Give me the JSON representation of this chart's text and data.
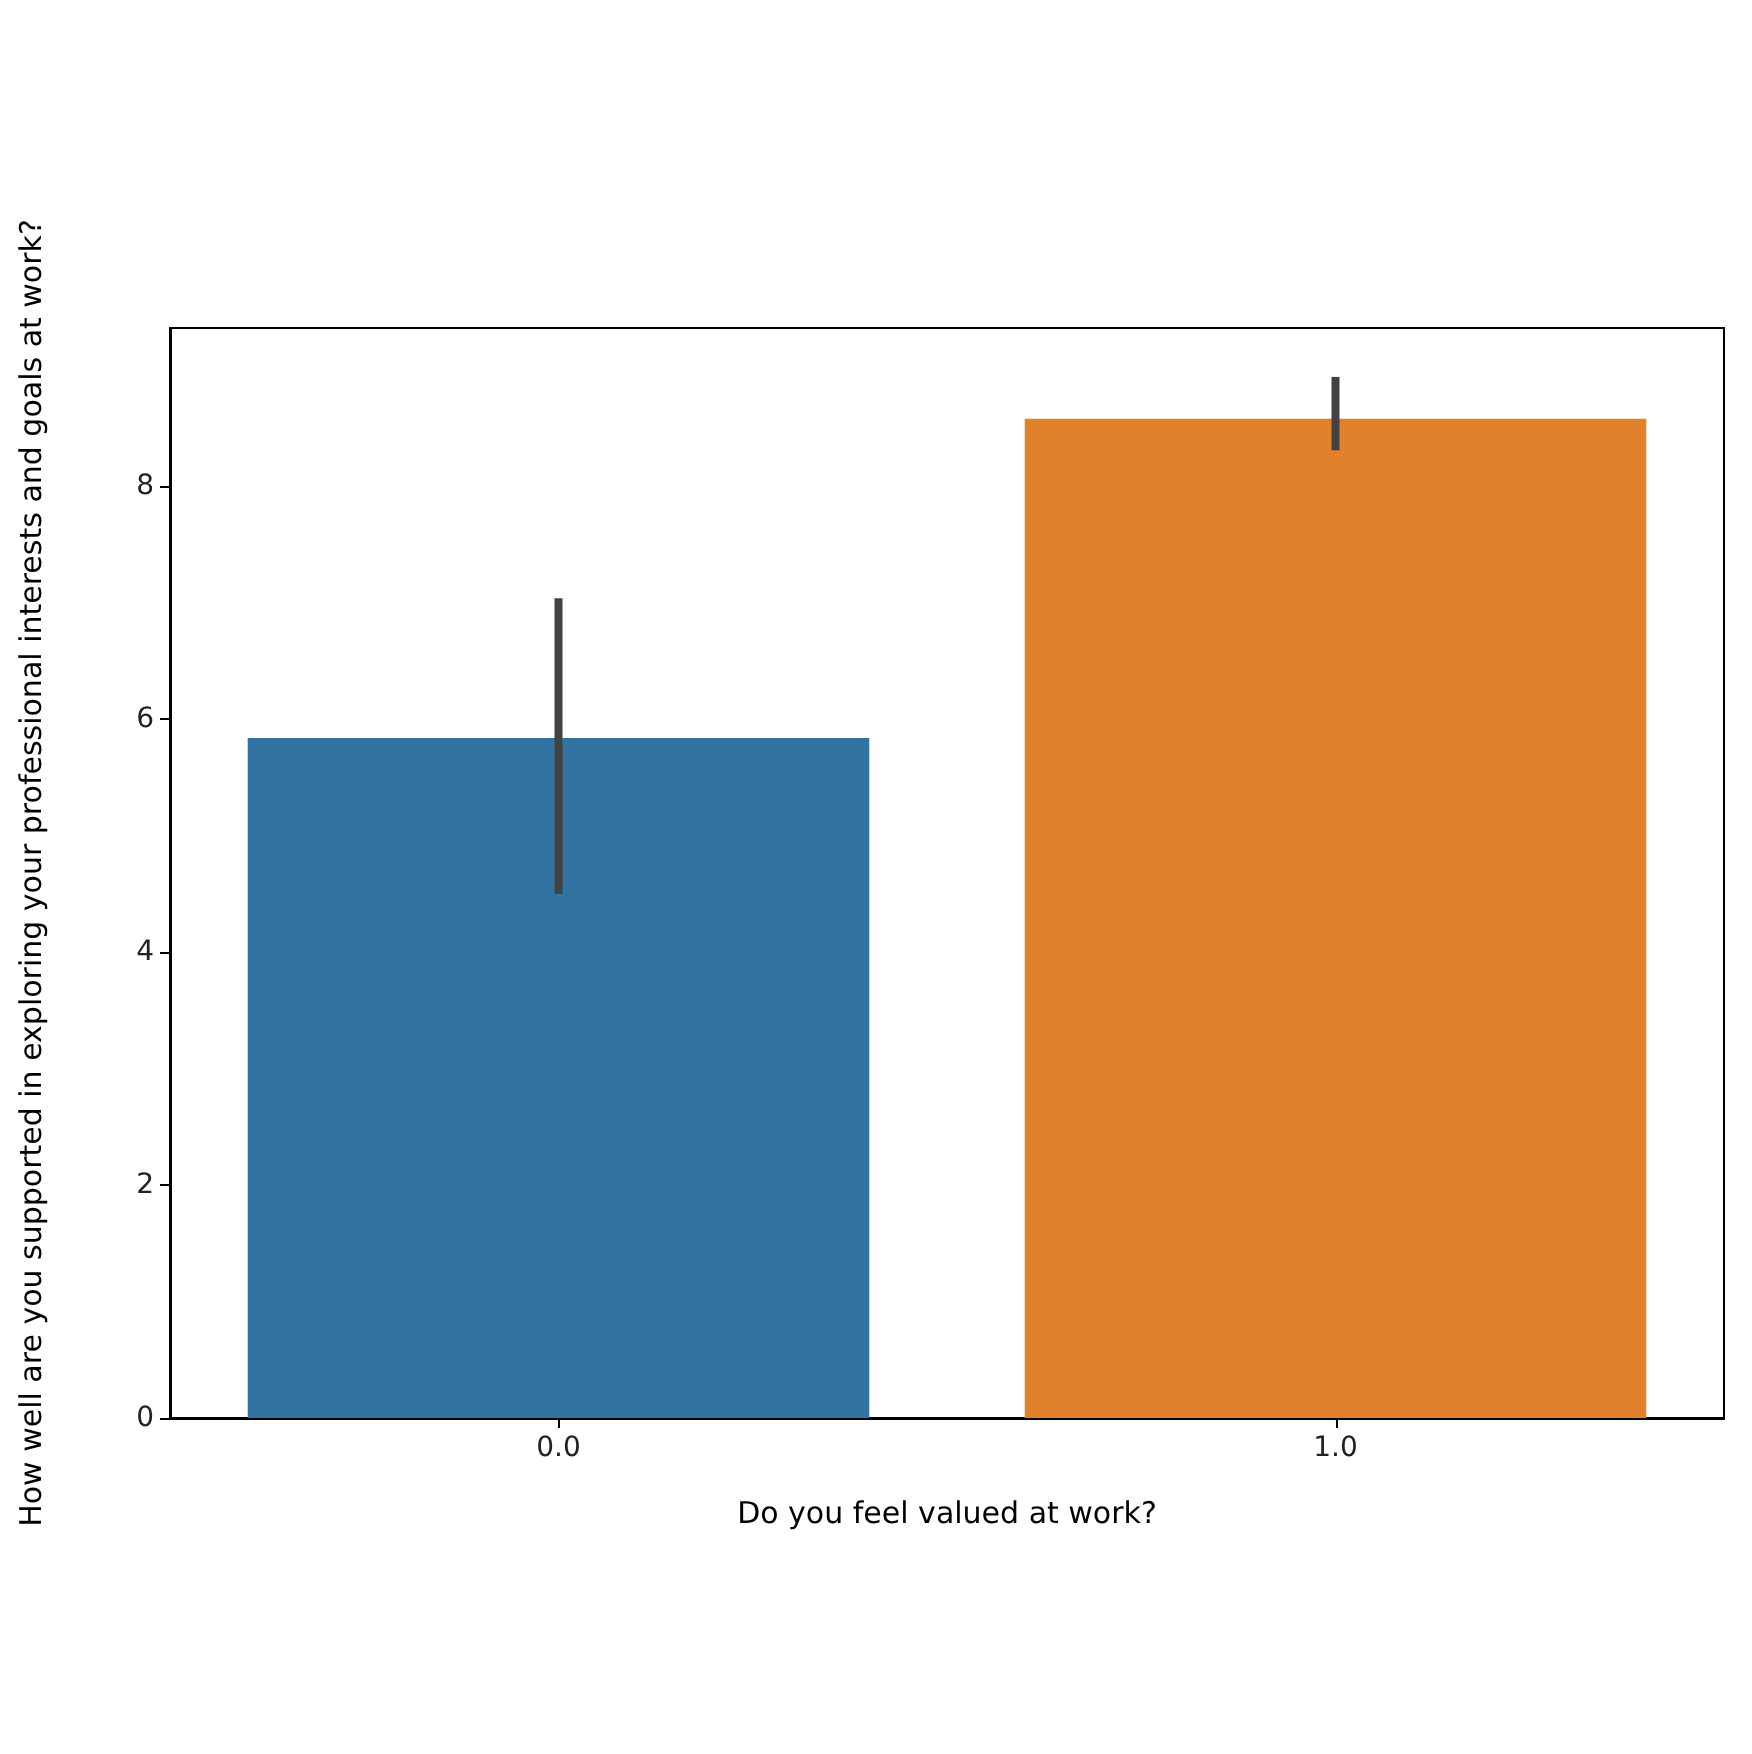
{
  "chart_data": {
    "type": "bar",
    "xlabel": "Do you feel valued at work?",
    "ylabel": "How well are you supported in exploring your professional interests and goals at work?",
    "categories": [
      "0.0",
      "1.0"
    ],
    "values": [
      5.84,
      8.58
    ],
    "colors": [
      "#3274a1",
      "#e1812c"
    ],
    "errors": [
      [
        4.5,
        7.04
      ],
      [
        8.31,
        8.94
      ]
    ],
    "ylim": [
      0,
      9.36
    ],
    "yticks": [
      0,
      2,
      4,
      6,
      8
    ]
  }
}
